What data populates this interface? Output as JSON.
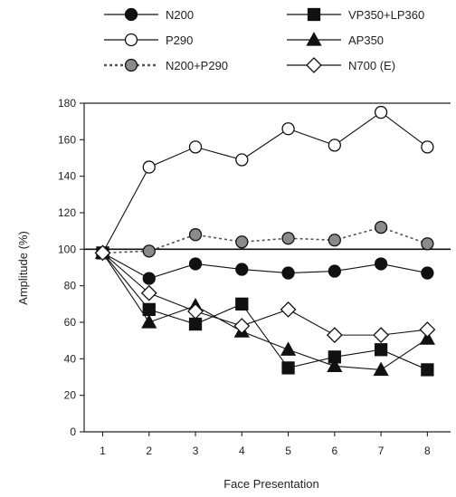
{
  "chart_data": {
    "type": "line",
    "title": "",
    "xlabel": "Face Presentation",
    "ylabel": "Amplitude (%)",
    "x": [
      1,
      2,
      3,
      4,
      5,
      6,
      7,
      8
    ],
    "xlim": [
      0.6,
      8.5
    ],
    "ylim": [
      0,
      180
    ],
    "y_ticks": [
      0,
      20,
      40,
      60,
      80,
      100,
      120,
      140,
      160,
      180
    ],
    "reference_line": 100,
    "grid": false,
    "legend_position": "top",
    "series": [
      {
        "name": "N200",
        "marker": "circle",
        "fill": "#111111",
        "line": "solid",
        "values": [
          98,
          84,
          92,
          89,
          87,
          88,
          92,
          87
        ]
      },
      {
        "name": "VP350+LP360",
        "marker": "square",
        "fill": "#111111",
        "line": "solid",
        "values": [
          98,
          67,
          59,
          70,
          35,
          41,
          45,
          34
        ]
      },
      {
        "name": "P290",
        "marker": "circle",
        "fill": "#ffffff",
        "line": "solid",
        "values": [
          98,
          145,
          156,
          149,
          166,
          157,
          175,
          156
        ]
      },
      {
        "name": "AP350",
        "marker": "triangle",
        "fill": "#111111",
        "line": "solid",
        "values": [
          98,
          60,
          69,
          55,
          45,
          36,
          34,
          51
        ]
      },
      {
        "name": "N200+P290",
        "marker": "circle",
        "fill": "#8a8a8a",
        "line": "dotted",
        "values": [
          98,
          99,
          108,
          104,
          106,
          105,
          112,
          103
        ]
      },
      {
        "name": "N700 (E)",
        "marker": "diamond",
        "fill": "#ffffff",
        "line": "solid",
        "values": [
          98,
          76,
          66,
          58,
          67,
          53,
          53,
          56
        ]
      }
    ]
  }
}
